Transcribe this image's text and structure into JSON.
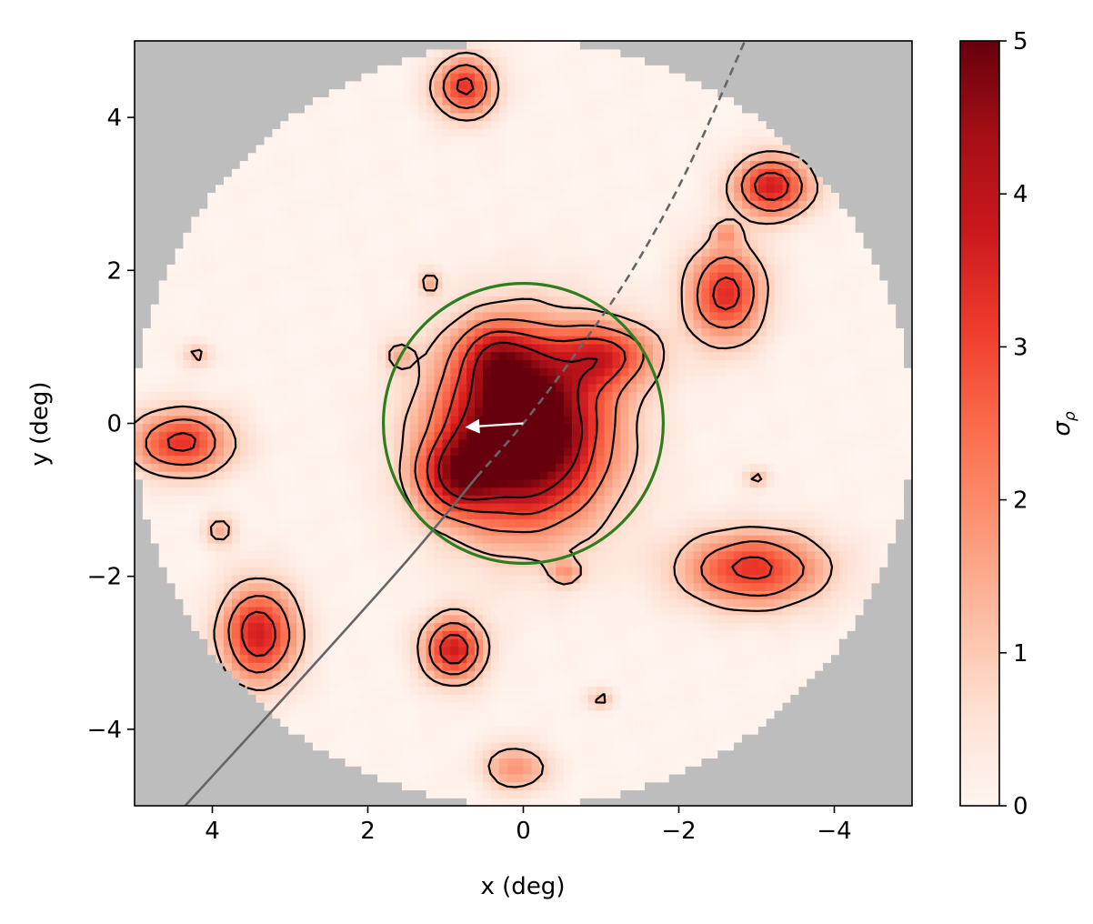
{
  "chart_data": {
    "type": "heatmap",
    "title": "",
    "xlabel": "x (deg)",
    "ylabel": "y (deg)",
    "xlim": [
      5,
      -5
    ],
    "ylim": [
      -5,
      5
    ],
    "x_ticks": [
      4,
      2,
      0,
      -2,
      -4
    ],
    "y_ticks": [
      -4,
      -2,
      0,
      2,
      4
    ],
    "x_tick_labels": [
      "4",
      "2",
      "0",
      "−2",
      "−4"
    ],
    "y_tick_labels": [
      "−4",
      "−2",
      "0",
      "2",
      "4"
    ],
    "colorbar": {
      "label": "σρ",
      "range": [
        0,
        5
      ],
      "ticks": [
        0,
        1,
        2,
        3,
        4,
        5
      ],
      "tick_labels": [
        "0",
        "1",
        "2",
        "3",
        "4",
        "5"
      ],
      "colormap": "Reds"
    },
    "field_radius_deg": 5,
    "masked_color": "#bdbdbd",
    "contour_levels": [
      1,
      2,
      3,
      4
    ],
    "blobs": [
      {
        "x": 0.0,
        "y": -0.1,
        "sx": 0.75,
        "sy": 0.85,
        "peak": 6.5
      },
      {
        "x": 0.9,
        "y": -0.7,
        "sx": 0.35,
        "sy": 0.35,
        "peak": 2.5
      },
      {
        "x": -1.1,
        "y": 0.9,
        "sx": 0.45,
        "sy": 0.3,
        "peak": 2.5
      },
      {
        "x": 0.35,
        "y": 0.9,
        "sx": 0.35,
        "sy": 0.3,
        "peak": 1.8
      },
      {
        "x": -2.6,
        "y": 1.7,
        "sx": 0.35,
        "sy": 0.45,
        "peak": 3.3
      },
      {
        "x": -3.2,
        "y": 3.1,
        "sx": 0.35,
        "sy": 0.28,
        "peak": 3.6
      },
      {
        "x": -2.95,
        "y": -1.9,
        "sx": 0.65,
        "sy": 0.35,
        "peak": 3.2
      },
      {
        "x": 3.4,
        "y": -2.75,
        "sx": 0.35,
        "sy": 0.45,
        "peak": 3.6
      },
      {
        "x": 4.4,
        "y": -0.25,
        "sx": 0.45,
        "sy": 0.3,
        "peak": 3.2
      },
      {
        "x": 0.9,
        "y": -2.95,
        "sx": 0.28,
        "sy": 0.3,
        "peak": 3.6
      },
      {
        "x": 0.1,
        "y": -4.5,
        "sx": 0.3,
        "sy": 0.22,
        "peak": 1.8
      },
      {
        "x": 0.75,
        "y": 4.4,
        "sx": 0.28,
        "sy": 0.28,
        "peak": 3.2
      },
      {
        "x": 1.2,
        "y": 1.85,
        "sx": 0.1,
        "sy": 0.12,
        "peak": 1.3
      },
      {
        "x": -0.55,
        "y": -1.95,
        "sx": 0.15,
        "sy": 0.12,
        "peak": 1.4
      },
      {
        "x": 3.9,
        "y": -1.4,
        "sx": 0.15,
        "sy": 0.15,
        "peak": 1.3
      },
      {
        "x": 4.2,
        "y": 0.9,
        "sx": 0.13,
        "sy": 0.12,
        "peak": 1.2
      },
      {
        "x": -3.0,
        "y": -0.7,
        "sx": 0.12,
        "sy": 0.1,
        "peak": 1.2
      },
      {
        "x": -1.0,
        "y": -3.6,
        "sx": 0.12,
        "sy": 0.1,
        "peak": 1.2
      },
      {
        "x": 1.6,
        "y": 0.9,
        "sx": 0.14,
        "sy": 0.14,
        "peak": 1.1
      },
      {
        "x": -2.6,
        "y": 2.5,
        "sx": 0.12,
        "sy": 0.1,
        "peak": 1.1
      }
    ],
    "green_circle": {
      "center": [
        0,
        0
      ],
      "radius_deg": 1.8,
      "color": "#2e7d1e"
    },
    "stream_track": {
      "color": "#666666",
      "points": [
        [
          4.35,
          -5.0
        ],
        [
          3.0,
          -3.5
        ],
        [
          1.5,
          -1.8
        ],
        [
          0.6,
          -0.7
        ],
        [
          0.0,
          0.0
        ],
        [
          -0.7,
          0.95
        ],
        [
          -1.4,
          2.0
        ],
        [
          -2.1,
          3.3
        ],
        [
          -2.85,
          5.0
        ]
      ],
      "dashed_from_x": 0.6
    },
    "motion_arrow": {
      "from": [
        0.0,
        0.0
      ],
      "to": [
        0.75,
        -0.05
      ],
      "color": "#ffffff"
    }
  }
}
